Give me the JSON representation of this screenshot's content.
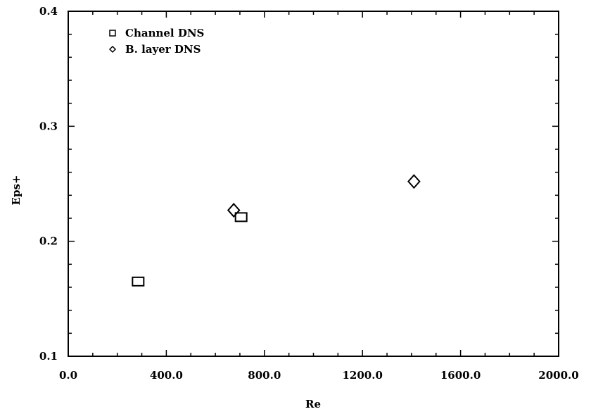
{
  "chart_data": {
    "type": "scatter",
    "title": "",
    "xlabel": "Re",
    "ylabel": "Eps+",
    "xlim": [
      0,
      2000
    ],
    "ylim": [
      0.1,
      0.4
    ],
    "x_ticks": [
      "0.0",
      "400.0",
      "800.0",
      "1200.0",
      "1600.0",
      "2000.0"
    ],
    "y_ticks": [
      "0.1",
      "0.2",
      "0.3",
      "0.4"
    ],
    "grid": false,
    "legend_position": "top-left",
    "series": [
      {
        "name": "Channel DNS",
        "marker": "square",
        "points": [
          {
            "x": 285,
            "y": 0.165
          },
          {
            "x": 705,
            "y": 0.221
          }
        ]
      },
      {
        "name": "B. layer DNS",
        "marker": "diamond",
        "points": [
          {
            "x": 675,
            "y": 0.227
          },
          {
            "x": 1410,
            "y": 0.252
          }
        ]
      }
    ]
  }
}
